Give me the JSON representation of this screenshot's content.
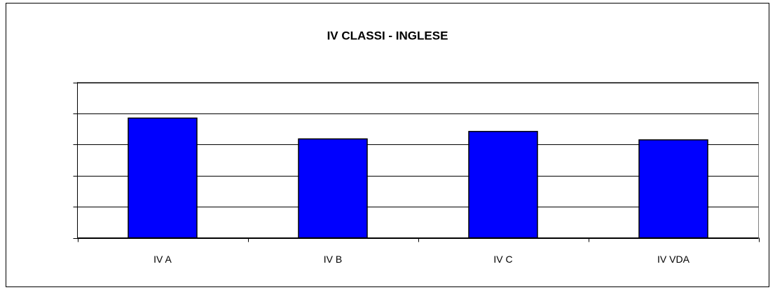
{
  "chart_data": {
    "type": "bar",
    "title": "IV CLASSI - INGLESE",
    "categories": [
      "IV A",
      "IV B",
      "IV C",
      "IV VDA"
    ],
    "values": [
      3.85,
      3.18,
      3.42,
      3.15
    ],
    "color": "#0000ff",
    "ylim": [
      0,
      5
    ],
    "yticks": [
      0,
      1,
      2,
      3,
      4,
      5
    ],
    "grid": true
  }
}
